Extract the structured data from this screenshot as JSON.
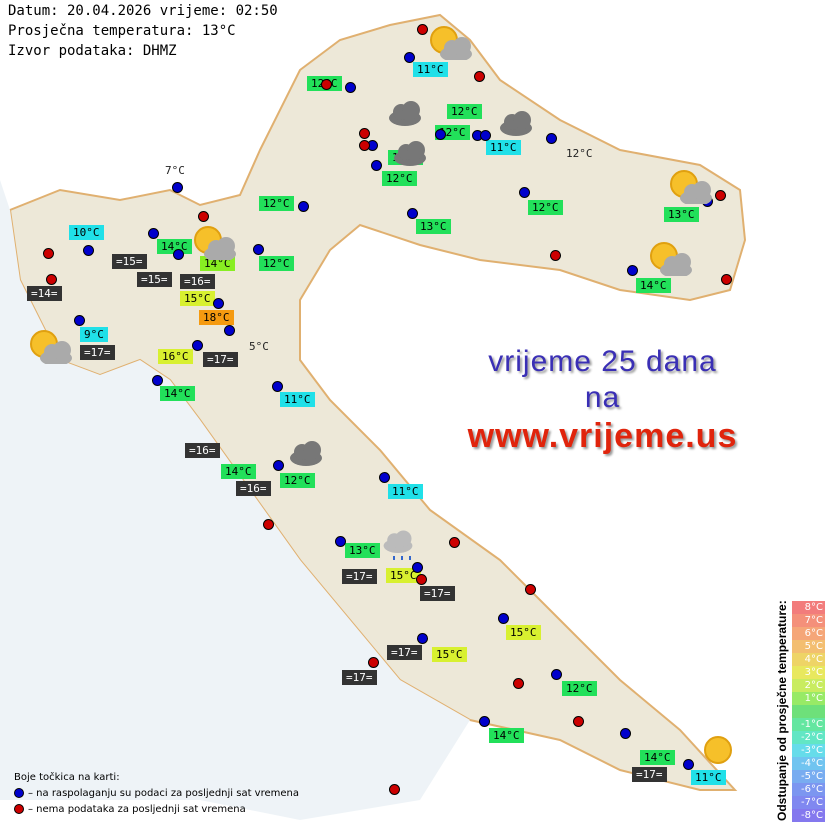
{
  "header": {
    "line1": "Datum: 20.04.2026 vrijeme: 02:50",
    "line2": "Prosječna temperatura: 13°C",
    "line3": "Izvor podataka: DHMZ"
  },
  "promo": {
    "line1": "vrijeme 25 dana",
    "line2": "na",
    "url": "www.vrijeme.us"
  },
  "stations": [
    "11°C",
    "12°C",
    "12°C",
    "12°C",
    "11°C",
    "12°C",
    "13°C",
    "12°C",
    "12°C",
    "12°C",
    "13°C",
    "13°C",
    "10°C",
    "14°C",
    "=15=",
    "14°C",
    "12°C",
    "=15=",
    "=16=",
    "15°C",
    "=14=",
    "14°C",
    "18°C",
    "9°C",
    "=17=",
    "5°C",
    "16°C",
    "=17=",
    "14°C",
    "11°C",
    "=16=",
    "14°C",
    "12°C",
    "=16=",
    "11°C",
    "13°C",
    "=17=",
    "15°C",
    "=17=",
    "15°C",
    "=17=",
    "15°C",
    "=17=",
    "12°C",
    "14°C",
    "14°C",
    "=17=",
    "11°C",
    "7°C"
  ],
  "legend": {
    "title": "Boje točkica na karti:",
    "blue": "– na raspolaganju su podaci za posljednji sat vremena",
    "red": "– nema podataka za posljednji sat vremena"
  },
  "scale": {
    "title": "Odstupanje od prosječne temperature:",
    "items": [
      "8°C",
      "7°C",
      "6°C",
      "5°C",
      "4°C",
      "3°C",
      "2°C",
      "1°C",
      "",
      "-1°C",
      "-2°C",
      "-3°C",
      "-4°C",
      "-5°C",
      "-6°C",
      "-7°C",
      "-8°C"
    ],
    "colors": [
      "#f27c7c",
      "#f4907a",
      "#f5a678",
      "#f3be70",
      "#eed466",
      "#e8e85e",
      "#c9ec60",
      "#98ea66",
      "#6ee07a",
      "#64e6a0",
      "#62e6c4",
      "#66dcea",
      "#70c4f0",
      "#78acf0",
      "#7c96f0",
      "#8088f0",
      "#8478ee"
    ]
  },
  "colors": {
    "dot_available": "#0000cc",
    "dot_missing": "#cc0000",
    "green": "#22e05a",
    "cyan": "#20e0e8",
    "yellow": "#f0f000",
    "orange": "#f59a10",
    "lime": "#88ee22"
  }
}
